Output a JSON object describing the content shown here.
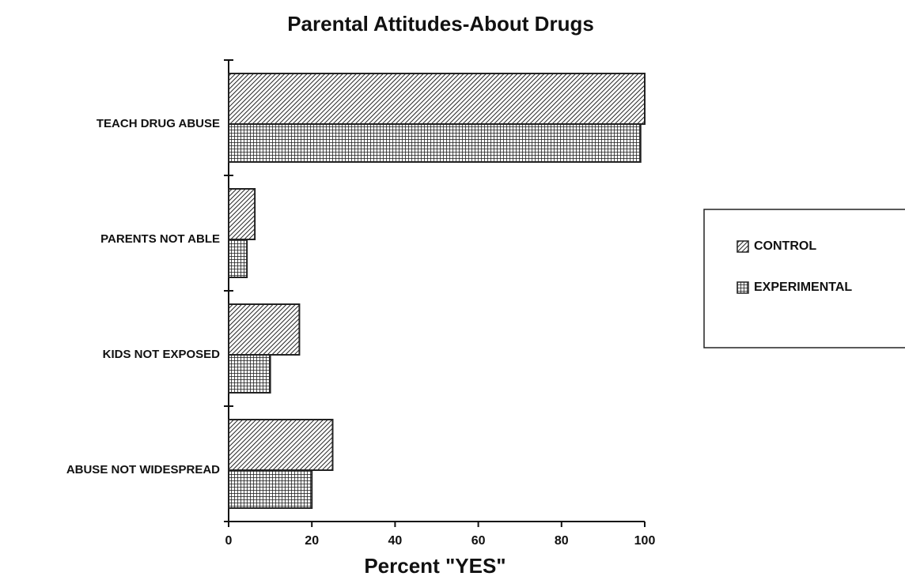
{
  "chart_data": {
    "type": "hbar",
    "title": "Parental Attitudes-About Drugs",
    "x_label": "Percent \"YES\"",
    "categories": [
      "TEACH DRUG ABUSE",
      "PARENTS NOT ABLE",
      "KIDS NOT EXPOSED",
      "ABUSE NOT WIDESPREAD"
    ],
    "series": [
      {
        "name": "CONTROL",
        "color": "#222",
        "pattern": "diagonal",
        "values": [
          100,
          6.3,
          17,
          25
        ]
      },
      {
        "name": "EXPERIMENTAL",
        "color": "#222",
        "pattern": "grid",
        "values": [
          99,
          4.4,
          10,
          20
        ]
      }
    ],
    "xlim": [
      0,
      100
    ],
    "xticks": [
      0,
      20,
      40,
      60,
      80,
      100
    ],
    "legend": "right"
  }
}
